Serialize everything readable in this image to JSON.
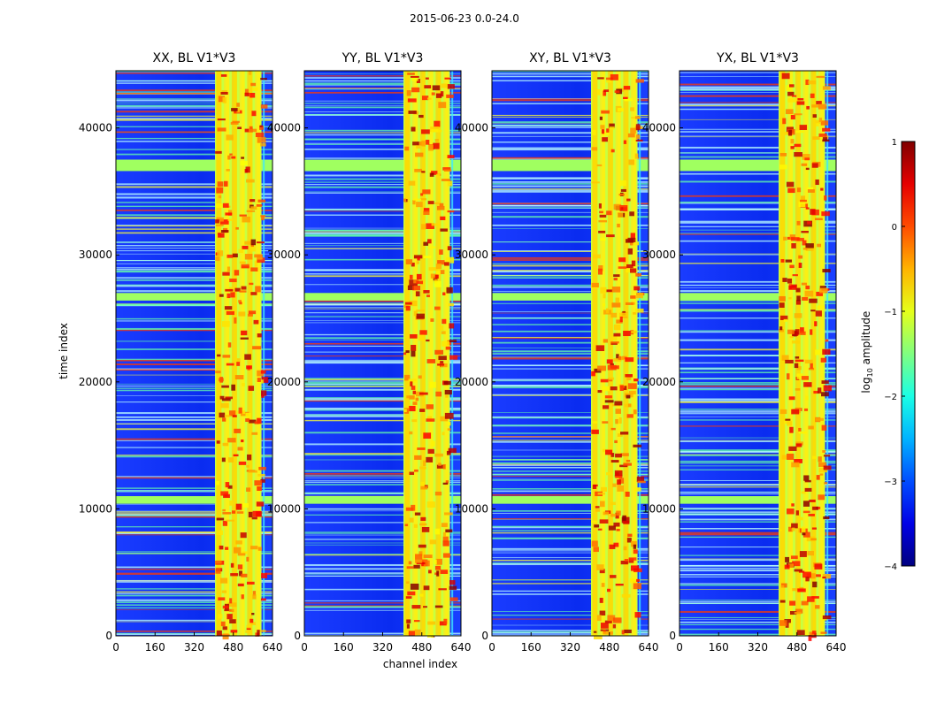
{
  "figure": {
    "suptitle": "2015-06-23 0.0-24.0",
    "xlabel": "channel index",
    "ylabel": "time index",
    "colorbar_label_base": "log",
    "colorbar_label_sub": "10",
    "colorbar_label_rest": " amplitude"
  },
  "chart_data": {
    "type": "heatmap",
    "panels": [
      {
        "title": "XX, BL V1*V3"
      },
      {
        "title": "YY, BL V1*V3"
      },
      {
        "title": "XY, BL V1*V3"
      },
      {
        "title": "YX, BL V1*V3"
      }
    ],
    "xlim": [
      0,
      640
    ],
    "ylim": [
      0,
      44500
    ],
    "xticks": [
      0,
      160,
      320,
      480,
      640
    ],
    "yticks": [
      0,
      10000,
      20000,
      30000,
      40000
    ],
    "colorbar": {
      "ticks": [
        1,
        0,
        -1,
        -2,
        -3,
        -4
      ],
      "tick_labels": [
        "1",
        "0",
        "−1",
        "−2",
        "−3",
        "−4"
      ],
      "range": [
        -4,
        1
      ],
      "colormap": "jet"
    },
    "bright_channel_band": [
      405,
      595
    ],
    "saturated_time_bands": [
      [
        36600,
        37500
      ],
      [
        26400,
        27000
      ],
      [
        10400,
        11000
      ]
    ]
  }
}
